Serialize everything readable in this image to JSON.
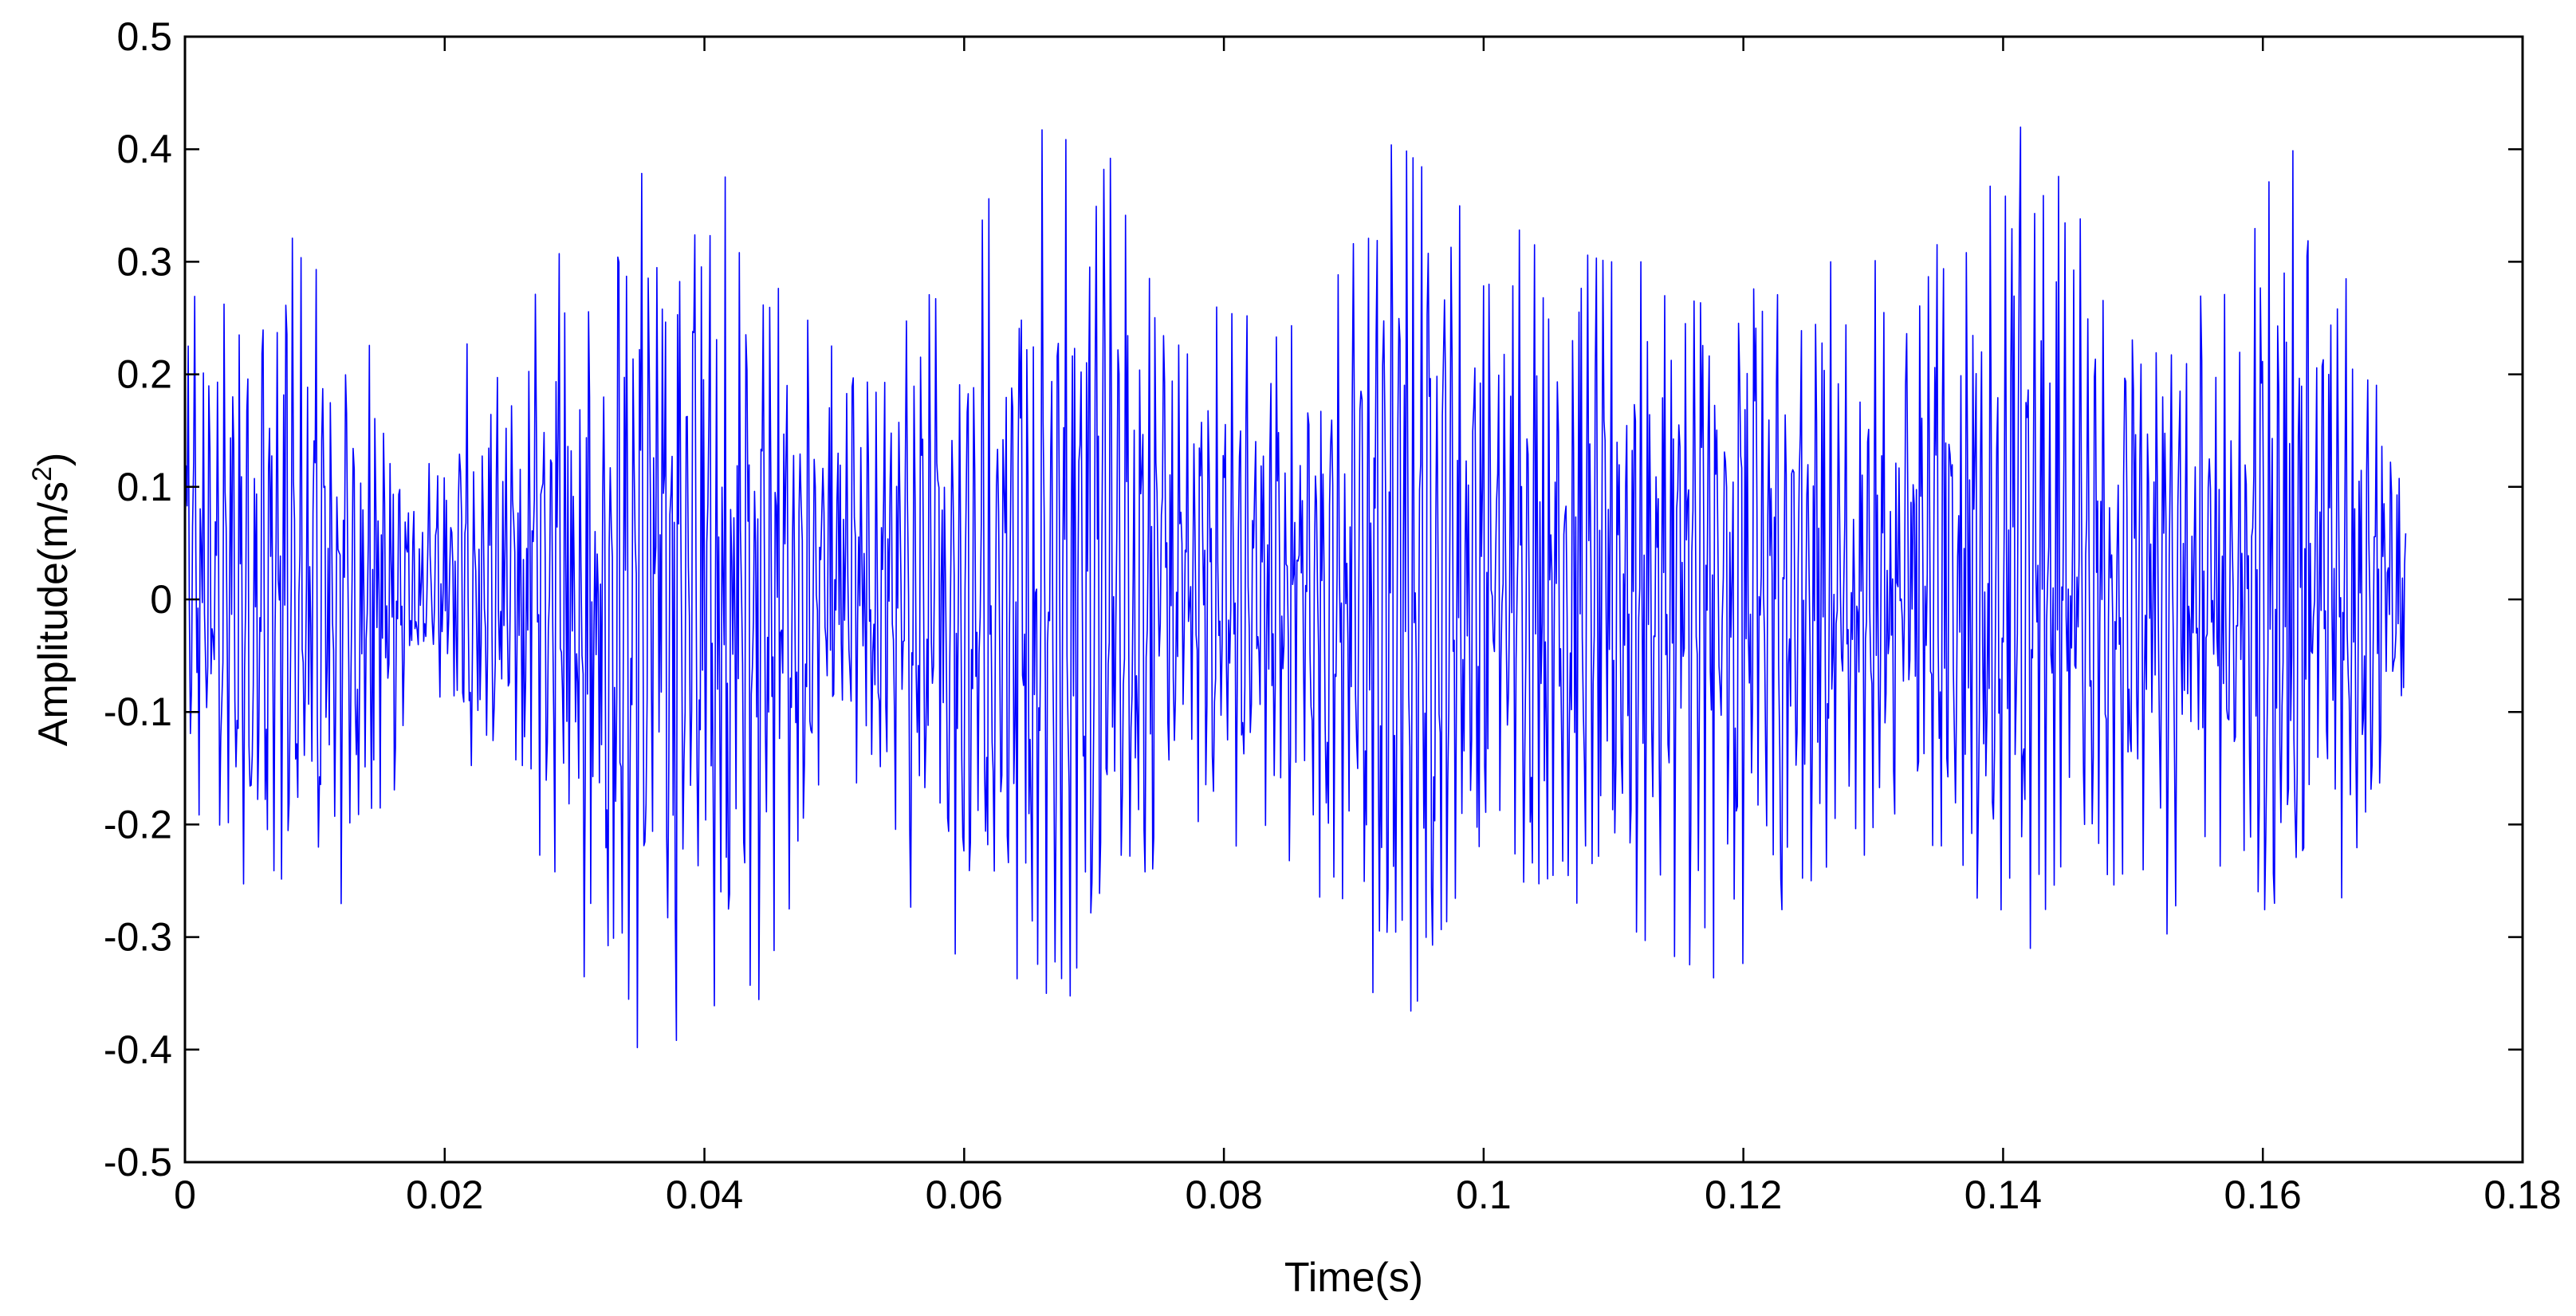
{
  "chart_data": {
    "type": "line",
    "title": "",
    "xlabel": "Time(s)",
    "ylabel": "Amplitude(m/s",
    "ylabel_superscript": "2",
    "ylabel_suffix": ")",
    "xlim": [
      0,
      0.18
    ],
    "ylim": [
      -0.5,
      0.5
    ],
    "grid": false,
    "x_ticks": [
      0,
      0.02,
      0.04,
      0.06,
      0.08,
      0.1,
      0.12,
      0.14,
      0.16,
      0.18
    ],
    "x_tick_labels": [
      "0",
      "0.02",
      "0.04",
      "0.06",
      "0.08",
      "0.1",
      "0.12",
      "0.14",
      "0.16",
      "0.18"
    ],
    "y_ticks": [
      -0.5,
      -0.4,
      -0.3,
      -0.2,
      -0.1,
      0,
      0.1,
      0.2,
      0.3,
      0.4,
      0.5
    ],
    "y_tick_labels": [
      "-0.5",
      "-0.4",
      "-0.3",
      "-0.2",
      "-0.1",
      "0",
      "0.1",
      "0.2",
      "0.3",
      "0.4",
      "0.5"
    ],
    "series": [
      {
        "color": "#0000ff",
        "x_start": 0,
        "x_end": 0.171,
        "sample_count": 2048,
        "peaks_max": [
          [
            0.0005,
            0.27
          ],
          [
            0.0038,
            0.26
          ],
          [
            0.0077,
            0.33
          ],
          [
            0.0096,
            0.3
          ],
          [
            0.0133,
            0.25
          ],
          [
            0.0185,
            0.11
          ],
          [
            0.0218,
            0.23
          ],
          [
            0.0249,
            0.22
          ],
          [
            0.0302,
            0.35
          ],
          [
            0.0345,
            0.33
          ],
          [
            0.0357,
            0.42
          ],
          [
            0.0403,
            0.42
          ],
          [
            0.0438,
            0.3
          ],
          [
            0.0502,
            0.22
          ],
          [
            0.055,
            0.24
          ],
          [
            0.0595,
            0.3
          ],
          [
            0.0625,
            0.37
          ],
          [
            0.0662,
            0.42
          ],
          [
            0.0672,
            0.41
          ],
          [
            0.0716,
            0.4
          ],
          [
            0.0754,
            0.28
          ],
          [
            0.0814,
            0.25
          ],
          [
            0.0891,
            0.29
          ],
          [
            0.0931,
            0.41
          ],
          [
            0.0981,
            0.35
          ],
          [
            0.1045,
            0.32
          ],
          [
            0.1095,
            0.3
          ],
          [
            0.1155,
            0.3
          ],
          [
            0.1201,
            0.3
          ],
          [
            0.1298,
            0.3
          ],
          [
            0.1365,
            0.32
          ],
          [
            0.1392,
            0.38
          ],
          [
            0.1419,
            0.43
          ],
          [
            0.1447,
            0.39
          ],
          [
            0.1508,
            0.25
          ],
          [
            0.1584,
            0.29
          ],
          [
            0.1604,
            0.37
          ],
          [
            0.1624,
            0.4
          ],
          [
            0.1696,
            0.22
          ],
          [
            0.1709,
            0.07
          ]
        ],
        "peaks_min": [
          [
            0.0012,
            -0.2
          ],
          [
            0.0045,
            -0.28
          ],
          [
            0.0075,
            -0.34
          ],
          [
            0.0122,
            -0.27
          ],
          [
            0.0134,
            -0.26
          ],
          [
            0.0185,
            -0.09
          ],
          [
            0.0212,
            -0.15
          ],
          [
            0.0307,
            -0.27
          ],
          [
            0.0304,
            -0.33
          ],
          [
            0.0356,
            -0.41
          ],
          [
            0.0393,
            -0.38
          ],
          [
            0.0455,
            -0.36
          ],
          [
            0.0507,
            -0.16
          ],
          [
            0.0556,
            -0.27
          ],
          [
            0.0622,
            -0.35
          ],
          [
            0.0665,
            -0.35
          ],
          [
            0.0675,
            -0.39
          ],
          [
            0.0727,
            -0.27
          ],
          [
            0.0772,
            -0.21
          ],
          [
            0.0813,
            -0.22
          ],
          [
            0.0895,
            -0.28
          ],
          [
            0.0932,
            -0.41
          ],
          [
            0.098,
            -0.26
          ],
          [
            0.1038,
            -0.25
          ],
          [
            0.1072,
            -0.27
          ],
          [
            0.1183,
            -0.34
          ],
          [
            0.1223,
            -0.3
          ],
          [
            0.1258,
            -0.24
          ],
          [
            0.1341,
            -0.21
          ],
          [
            0.1402,
            -0.32
          ],
          [
            0.1422,
            -0.31
          ],
          [
            0.1456,
            -0.2
          ],
          [
            0.1516,
            -0.31
          ],
          [
            0.1588,
            -0.22
          ],
          [
            0.1605,
            -0.39
          ],
          [
            0.1645,
            -0.29
          ],
          [
            0.1664,
            -0.26
          ],
          [
            0.1709,
            -0.1
          ]
        ]
      }
    ]
  }
}
